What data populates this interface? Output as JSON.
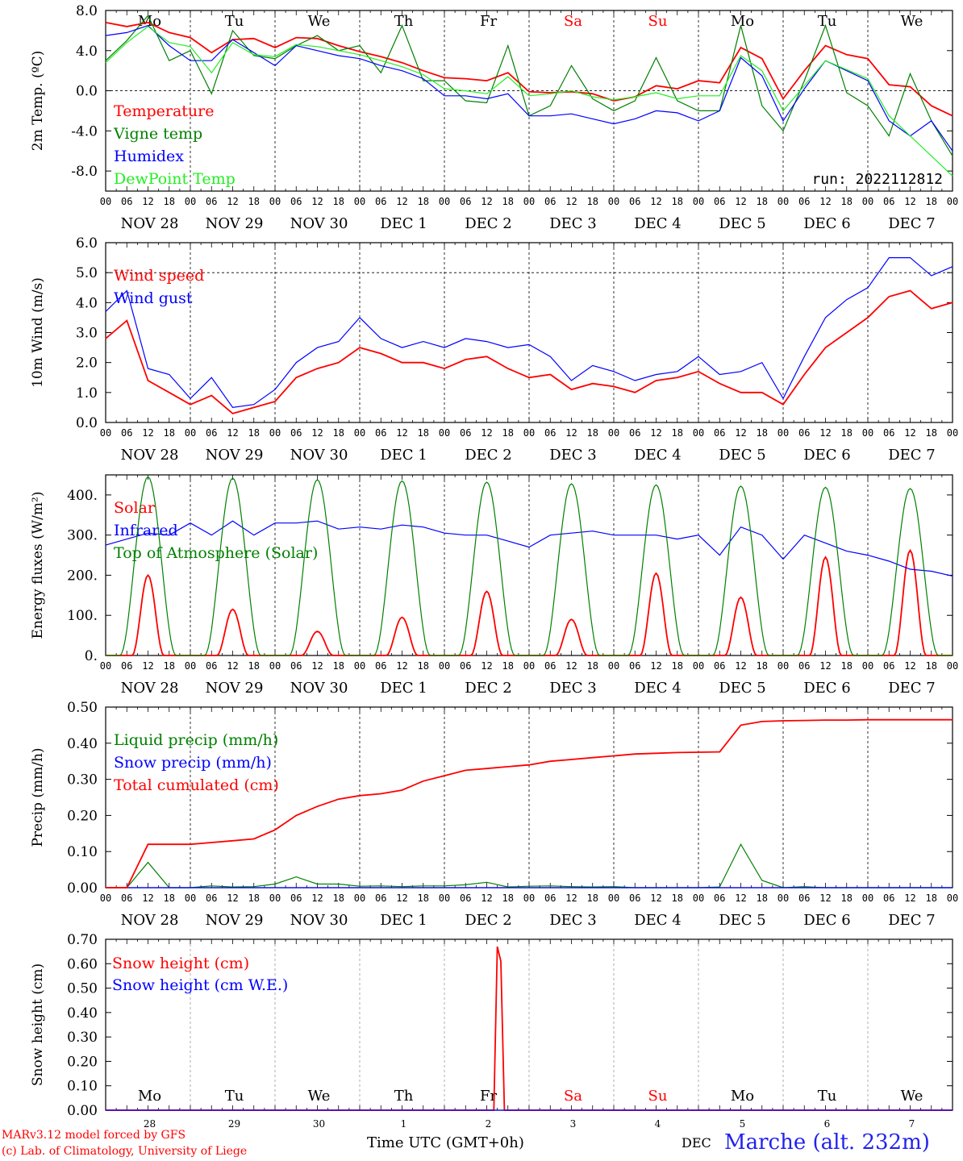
{
  "colors": {
    "red": "#ff0000",
    "darkgreen": "#008000",
    "blue": "#0000ff",
    "lime": "#22ee22",
    "weekend": "#ff0000",
    "axis": "#000000"
  },
  "day_names": [
    "Mo",
    "Tu",
    "We",
    "Th",
    "Fr",
    "Sa",
    "Su",
    "Mo",
    "Tu",
    "We"
  ],
  "weekend_flags": [
    false,
    false,
    false,
    false,
    false,
    true,
    true,
    false,
    false,
    false
  ],
  "date_labels": [
    "NOV 28",
    "NOV 29",
    "NOV 30",
    "DEC  1",
    "DEC  2",
    "DEC  3",
    "DEC  4",
    "DEC  5",
    "DEC  6",
    "DEC  7"
  ],
  "hour_labels": [
    "00",
    "06",
    "12",
    "18"
  ],
  "hour_end_label": "00",
  "bottom_day_numbers": [
    "28",
    "29",
    "30",
    "1",
    "2",
    "3",
    "4",
    "5",
    "6",
    "7"
  ],
  "footer": {
    "credit_line1": "MARv3.12 model forced by GFS",
    "credit_line2": "(c) Lab. of Climatology, University of Liege",
    "x_title": "Time UTC (GMT+0h)",
    "month_label": "DEC",
    "station": "Marche (alt. 232m)"
  },
  "chart_data": [
    {
      "type": "line",
      "ylabel": "2m Temp. (ºC)",
      "ylim": [
        -10,
        8
      ],
      "yticks": [
        8,
        4,
        0,
        -4,
        -8
      ],
      "ytick_labels": [
        "8.0",
        "4.0",
        "0.0",
        "-4.0",
        "-8.0"
      ],
      "hline": 0,
      "annotation": "run: 2022112812",
      "x_hours": [
        0,
        6,
        12,
        18,
        24,
        30,
        36,
        42,
        48,
        54,
        60,
        66,
        72,
        78,
        84,
        90,
        96,
        102,
        108,
        114,
        120,
        126,
        132,
        138,
        144,
        150,
        156,
        162,
        168,
        174,
        180,
        186,
        192,
        198,
        204,
        210,
        216,
        222,
        228,
        234,
        240
      ],
      "series": [
        {
          "name": "Temperature",
          "color": "red",
          "values": [
            6.8,
            6.4,
            6.8,
            5.8,
            5.3,
            3.8,
            5.1,
            5.2,
            4.3,
            5.3,
            5.2,
            4.5,
            3.9,
            3.4,
            2.8,
            2.0,
            1.3,
            1.2,
            1.0,
            1.8,
            -0.1,
            -0.2,
            -0.1,
            -0.3,
            -1.0,
            -0.6,
            0.5,
            0.2,
            1.0,
            0.8,
            4.3,
            3.2,
            -0.8,
            2.0,
            4.5,
            3.6,
            3.2,
            0.6,
            0.4,
            -1.5,
            -2.5
          ]
        },
        {
          "name": "Vigne temp",
          "color": "darkgreen",
          "values": [
            3.0,
            5.0,
            7.5,
            3.0,
            4.0,
            -0.3,
            6.0,
            3.5,
            3.2,
            4.5,
            5.5,
            4.0,
            4.5,
            1.8,
            6.5,
            1.0,
            1.0,
            -1.0,
            -1.2,
            4.5,
            -2.5,
            -1.5,
            2.5,
            -0.8,
            -2.0,
            -1.0,
            3.3,
            -1.0,
            -2.0,
            -2.0,
            6.5,
            -1.5,
            -4.0,
            1.0,
            6.5,
            -0.2,
            -1.5,
            -4.5,
            1.7,
            -3.0,
            -6.5
          ]
        },
        {
          "name": "Humidex",
          "color": "blue",
          "values": [
            5.5,
            5.8,
            6.5,
            4.5,
            3.0,
            3.0,
            5.1,
            3.8,
            2.5,
            4.5,
            4.0,
            3.5,
            3.2,
            2.5,
            2.0,
            1.2,
            -0.5,
            -0.5,
            -0.8,
            -0.3,
            -2.5,
            -2.5,
            -2.3,
            -2.8,
            -3.3,
            -2.8,
            -2.0,
            -2.2,
            -3.0,
            -2.0,
            3.3,
            1.5,
            -3.0,
            0.2,
            3.0,
            2.0,
            1.0,
            -3.0,
            -4.5,
            -3.0,
            -6.0
          ]
        },
        {
          "name": "DewPoint Temp",
          "color": "lime",
          "values": [
            2.8,
            4.8,
            6.4,
            4.8,
            4.4,
            1.8,
            4.8,
            3.6,
            3.4,
            4.6,
            4.4,
            4.0,
            3.6,
            3.0,
            2.4,
            1.6,
            0.2,
            0.0,
            -0.3,
            1.4,
            -0.5,
            -0.3,
            0.0,
            -0.6,
            -0.9,
            -0.6,
            -0.2,
            -0.8,
            -0.5,
            -0.5,
            3.5,
            2.0,
            -2.0,
            0.5,
            3.0,
            2.1,
            1.2,
            -2.5,
            -4.5,
            -6.5,
            -8.5
          ]
        }
      ]
    },
    {
      "type": "line",
      "ylabel": "10m Wind (m/s)",
      "ylim": [
        0,
        6
      ],
      "yticks": [
        6,
        5,
        4,
        3,
        2,
        1,
        0
      ],
      "ytick_labels": [
        "6.0",
        "5.0",
        "4.0",
        "3.0",
        "2.0",
        "1.0",
        "0.0"
      ],
      "hline": 5,
      "x_hours": [
        0,
        6,
        12,
        18,
        24,
        30,
        36,
        42,
        48,
        54,
        60,
        66,
        72,
        78,
        84,
        90,
        96,
        102,
        108,
        114,
        120,
        126,
        132,
        138,
        144,
        150,
        156,
        162,
        168,
        174,
        180,
        186,
        192,
        198,
        204,
        210,
        216,
        222,
        228,
        234,
        240
      ],
      "series": [
        {
          "name": "Wind speed",
          "color": "red",
          "values": [
            2.8,
            3.4,
            1.4,
            1.0,
            0.6,
            0.9,
            0.3,
            0.5,
            0.7,
            1.5,
            1.8,
            2.0,
            2.5,
            2.3,
            2.0,
            2.0,
            1.8,
            2.1,
            2.2,
            1.8,
            1.5,
            1.6,
            1.1,
            1.3,
            1.2,
            1.0,
            1.4,
            1.5,
            1.7,
            1.3,
            1.0,
            1.0,
            0.6,
            1.6,
            2.5,
            3.0,
            3.5,
            4.2,
            4.4,
            3.8,
            4.0
          ]
        },
        {
          "name": "Wind gust",
          "color": "blue",
          "values": [
            3.7,
            4.4,
            1.8,
            1.6,
            0.8,
            1.5,
            0.5,
            0.6,
            1.1,
            2.0,
            2.5,
            2.7,
            3.5,
            2.8,
            2.5,
            2.7,
            2.5,
            2.8,
            2.7,
            2.5,
            2.6,
            2.2,
            1.4,
            1.9,
            1.7,
            1.4,
            1.6,
            1.7,
            2.2,
            1.6,
            1.7,
            2.0,
            0.8,
            2.2,
            3.5,
            4.1,
            4.5,
            5.5,
            5.5,
            4.9,
            5.2
          ]
        }
      ]
    },
    {
      "type": "line",
      "ylabel": "Energy fluxes (W/m²)",
      "ylim": [
        0,
        450
      ],
      "yticks": [
        400,
        300,
        200,
        100,
        0
      ],
      "ytick_labels": [
        "400.",
        "300.",
        "200.",
        "100.",
        "0."
      ],
      "x_hours": [
        0,
        6,
        12,
        18,
        24,
        30,
        36,
        42,
        48,
        54,
        60,
        66,
        72,
        78,
        84,
        90,
        96,
        102,
        108,
        114,
        120,
        126,
        132,
        138,
        144,
        150,
        156,
        162,
        168,
        174,
        180,
        186,
        192,
        198,
        204,
        210,
        216,
        222,
        228,
        234,
        240
      ],
      "series": [
        {
          "name": "Solar",
          "color": "red",
          "peak_hours": [
            12,
            36,
            60,
            84,
            108,
            132,
            156,
            180,
            204,
            228
          ],
          "peak_values": [
            200,
            115,
            60,
            95,
            160,
            90,
            205,
            145,
            245,
            262
          ],
          "half_width_hours": 4.5
        },
        {
          "name": "Infrared",
          "color": "blue",
          "values": [
            275,
            290,
            305,
            300,
            330,
            300,
            335,
            300,
            330,
            330,
            335,
            315,
            320,
            315,
            325,
            320,
            305,
            300,
            300,
            285,
            270,
            300,
            305,
            310,
            300,
            300,
            300,
            290,
            300,
            250,
            320,
            300,
            240,
            300,
            280,
            260,
            250,
            235,
            215,
            210,
            198
          ]
        },
        {
          "name": "Top of Atmosphere (Solar)",
          "color": "darkgreen",
          "peak_hours": [
            12,
            36,
            60,
            84,
            108,
            132,
            156,
            180,
            204,
            228
          ],
          "peak_values": [
            445,
            442,
            438,
            435,
            432,
            428,
            425,
            422,
            419,
            416
          ],
          "half_width_hours": 8
        }
      ]
    },
    {
      "type": "line",
      "ylabel": "Precip (mm/h)",
      "ylim": [
        0,
        0.5
      ],
      "yticks": [
        0.5,
        0.4,
        0.3,
        0.2,
        0.1,
        0
      ],
      "ytick_labels": [
        "0.50",
        "0.40",
        "0.30",
        "0.20",
        "0.10",
        "0.00"
      ],
      "x_hours": [
        0,
        6,
        12,
        18,
        24,
        30,
        36,
        42,
        48,
        54,
        60,
        66,
        72,
        78,
        84,
        90,
        96,
        102,
        108,
        114,
        120,
        126,
        132,
        138,
        144,
        150,
        156,
        162,
        168,
        174,
        180,
        186,
        192,
        198,
        204,
        210,
        216,
        222,
        228,
        234,
        240
      ],
      "series": [
        {
          "name": "Liquid precip (mm/h)",
          "color": "darkgreen",
          "values": [
            0,
            0,
            0.07,
            0,
            0,
            0.005,
            0.002,
            0.003,
            0.01,
            0.03,
            0.01,
            0.01,
            0.004,
            0.005,
            0.003,
            0.005,
            0.005,
            0.008,
            0.015,
            0.002,
            0.004,
            0.005,
            0.003,
            0.002,
            0.003,
            0,
            0,
            0,
            0,
            0.002,
            0.12,
            0.02,
            0,
            0.003,
            0,
            0,
            0,
            0,
            0,
            0,
            0
          ]
        },
        {
          "name": "Snow precip (mm/h)",
          "color": "blue",
          "values": [
            0,
            0,
            0,
            0,
            0,
            0,
            0,
            0,
            0,
            0,
            0,
            0,
            0,
            0,
            0,
            0,
            0,
            0,
            0,
            0,
            0,
            0,
            0,
            0,
            0,
            0,
            0,
            0,
            0,
            0,
            0,
            0,
            0,
            0,
            0,
            0,
            0,
            0,
            0,
            0,
            0
          ]
        },
        {
          "name": "Total cumulated (cm)",
          "color": "red",
          "values": [
            0,
            0,
            0.12,
            0.12,
            0.12,
            0.125,
            0.13,
            0.135,
            0.16,
            0.2,
            0.225,
            0.245,
            0.255,
            0.26,
            0.27,
            0.295,
            0.31,
            0.325,
            0.33,
            0.335,
            0.34,
            0.35,
            0.355,
            0.36,
            0.365,
            0.37,
            0.372,
            0.374,
            0.375,
            0.376,
            0.45,
            0.46,
            0.462,
            0.463,
            0.464,
            0.464,
            0.465,
            0.465,
            0.465,
            0.465,
            0.465
          ]
        }
      ]
    },
    {
      "type": "line",
      "ylabel": "Snow height (cm)",
      "ylim": [
        0,
        0.7
      ],
      "yticks": [
        0.7,
        0.6,
        0.5,
        0.4,
        0.3,
        0.2,
        0.1,
        0
      ],
      "ytick_labels": [
        "0.70",
        "0.60",
        "0.50",
        "0.40",
        "0.30",
        "0.20",
        "0.10",
        "0.00"
      ],
      "x_hours": [
        0,
        109,
        110,
        111,
        112,
        113,
        114,
        240
      ],
      "series": [
        {
          "name": "Snow height (cm)",
          "color": "red",
          "values": [
            0,
            0,
            0,
            0.67,
            0.61,
            0,
            0,
            0
          ]
        },
        {
          "name": "Snow height (cm W.E.)",
          "color": "blue",
          "values": [
            0,
            0,
            0,
            0,
            0,
            0,
            0,
            0
          ]
        }
      ]
    }
  ]
}
